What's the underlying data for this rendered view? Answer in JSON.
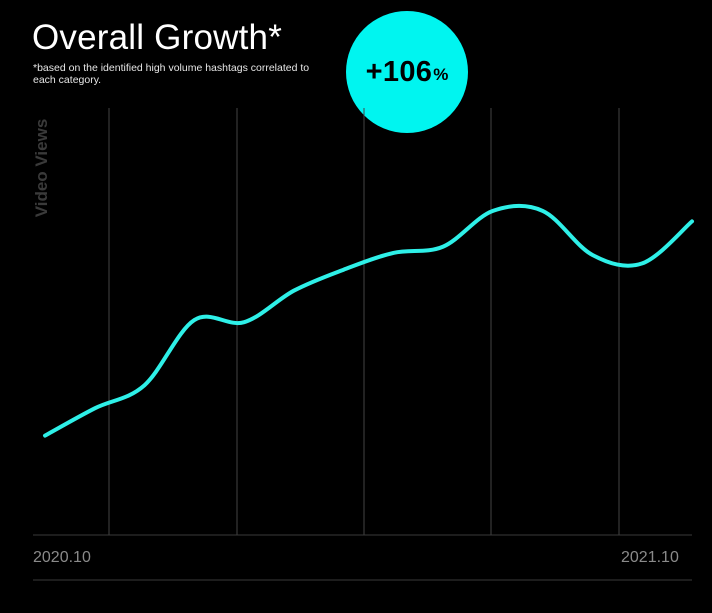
{
  "colors": {
    "background": "#000000",
    "accent": "#2ef0e8",
    "badge": "#00f5f0",
    "grid": "#444444",
    "axis_text": "#8a8a8a",
    "ylabel_text": "#3a3a3a"
  },
  "badge": {
    "value": "+106",
    "unit": "%"
  },
  "chart_data": {
    "type": "line",
    "title": "Overall Growth*",
    "subtitle": "*based on the identified high volume hashtags correlated to each category.",
    "xlabel": "",
    "ylabel": "Video Views",
    "x_tick_labels": [
      "2020.10",
      "2021.10"
    ],
    "xlim": [
      0,
      13
    ],
    "ylim": [
      0,
      100
    ],
    "grid": "vertical",
    "series": [
      {
        "name": "Video Views",
        "x": [
          0,
          1,
          2,
          3,
          4,
          5,
          6,
          7,
          8,
          9,
          10,
          11,
          12,
          13
        ],
        "values": [
          22,
          28.5,
          34,
          49.5,
          49,
          56.5,
          61.5,
          65.5,
          67,
          75.5,
          75.5,
          65,
          63,
          73
        ]
      }
    ]
  }
}
